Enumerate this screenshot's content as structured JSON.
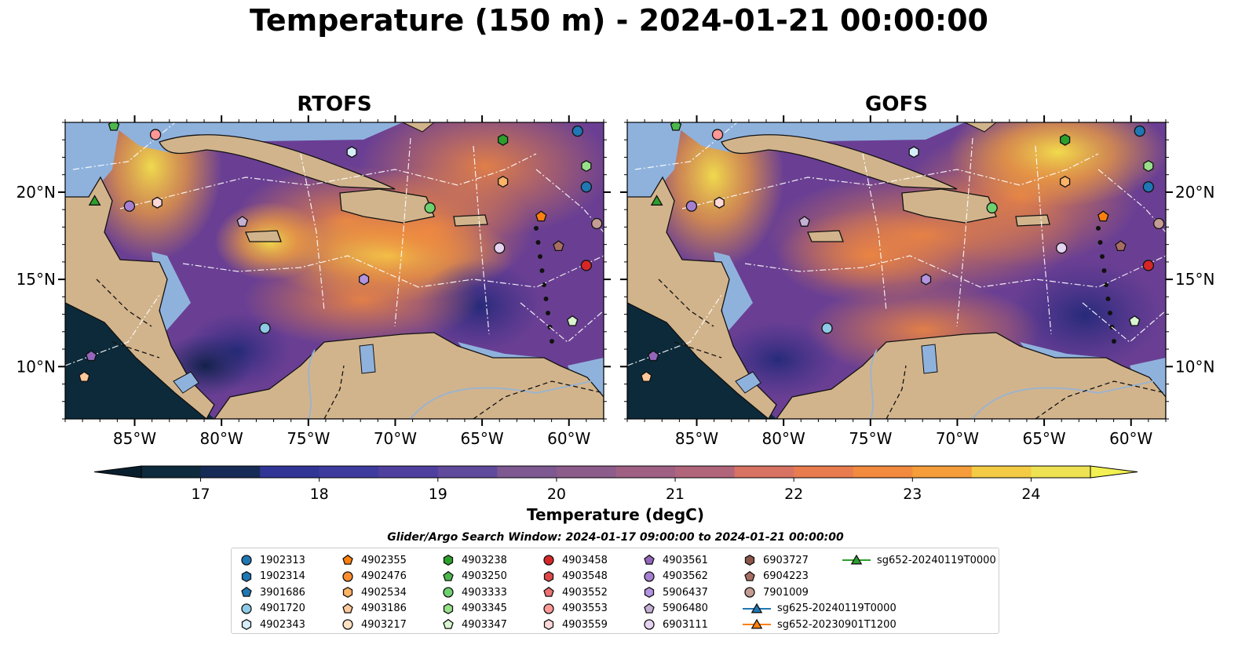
{
  "title": "Temperature (150 m) - 2024-01-21 00:00:00",
  "panels": [
    {
      "title": "RTOFS"
    },
    {
      "title": "GOFS"
    }
  ],
  "lat_labels": [
    "20°N",
    "15°N",
    "10°N"
  ],
  "lon_labels": [
    "85°W",
    "80°W",
    "75°W",
    "70°W",
    "65°W",
    "60°W"
  ],
  "map_extent": {
    "lon": [
      -89,
      -58
    ],
    "lat": [
      7,
      24
    ]
  },
  "colorbar": {
    "label": "Temperature (degC)",
    "ticks": [
      "17",
      "18",
      "19",
      "20",
      "21",
      "22",
      "23",
      "24"
    ],
    "range": [
      16.5,
      24.5
    ],
    "colormap": "thermal",
    "extend": "both"
  },
  "search_window": "Glider/Argo Search Window: 2024-01-17 09:00:00 to 2024-01-21 00:00:00",
  "legend": [
    {
      "label": "1902313",
      "marker": "circle",
      "color": "#1f77b4"
    },
    {
      "label": "1902314",
      "marker": "hexagon",
      "color": "#1f77b4"
    },
    {
      "label": "3901686",
      "marker": "pentagon",
      "color": "#1f77b4"
    },
    {
      "label": "4901720",
      "marker": "circle",
      "color": "#8ecae6"
    },
    {
      "label": "4902343",
      "marker": "hexagon",
      "color": "#d6eefa"
    },
    {
      "label": "4902355",
      "marker": "pentagon",
      "color": "#ff7f0e"
    },
    {
      "label": "4902476",
      "marker": "circle",
      "color": "#ff8c2e"
    },
    {
      "label": "4902534",
      "marker": "hexagon",
      "color": "#ffb366"
    },
    {
      "label": "4903186",
      "marker": "pentagon",
      "color": "#ffc89a"
    },
    {
      "label": "4903217",
      "marker": "circle",
      "color": "#ffe2c4"
    },
    {
      "label": "4903238",
      "marker": "hexagon",
      "color": "#2ca02c"
    },
    {
      "label": "4903250",
      "marker": "pentagon",
      "color": "#4cb84c"
    },
    {
      "label": "4903333",
      "marker": "circle",
      "color": "#6fd06f"
    },
    {
      "label": "4903345",
      "marker": "hexagon",
      "color": "#98df8a"
    },
    {
      "label": "4903347",
      "marker": "pentagon",
      "color": "#d8f5d0"
    },
    {
      "label": "4903458",
      "marker": "circle",
      "color": "#d62728"
    },
    {
      "label": "4903548",
      "marker": "hexagon",
      "color": "#e04848"
    },
    {
      "label": "4903552",
      "marker": "pentagon",
      "color": "#ee7070"
    },
    {
      "label": "4903553",
      "marker": "circle",
      "color": "#ff9896"
    },
    {
      "label": "4903559",
      "marker": "hexagon",
      "color": "#ffd8d8"
    },
    {
      "label": "4903561",
      "marker": "pentagon",
      "color": "#9467bd"
    },
    {
      "label": "4903562",
      "marker": "circle",
      "color": "#a57fd0"
    },
    {
      "label": "5906437",
      "marker": "hexagon",
      "color": "#b294e0"
    },
    {
      "label": "5906480",
      "marker": "pentagon",
      "color": "#c5b0d5"
    },
    {
      "label": "6903111",
      "marker": "circle",
      "color": "#e6d3f2"
    },
    {
      "label": "6903727",
      "marker": "hexagon",
      "color": "#8c564b"
    },
    {
      "label": "6904223",
      "marker": "pentagon",
      "color": "#a86e62"
    },
    {
      "label": "7901009",
      "marker": "circle",
      "color": "#c49c94"
    },
    {
      "label": "sg625-20240119T0000",
      "marker": "triangle-line",
      "color": "#1f77b4"
    },
    {
      "label": "sg652-20230901T1200",
      "marker": "triangle-line",
      "color": "#ff7f0e"
    },
    {
      "label": "sg652-20240119T0000",
      "marker": "triangle-line",
      "color": "#2ca02c"
    }
  ],
  "floats": [
    {
      "id": "1902313",
      "lon": -59.0,
      "lat": 20.3
    },
    {
      "id": "1902313",
      "lon": -59.5,
      "lat": 23.5
    },
    {
      "id": "4903333",
      "lon": -68.0,
      "lat": 19.1
    },
    {
      "id": "4903345",
      "lon": -59.0,
      "lat": 21.5
    },
    {
      "id": "4903238",
      "lon": -63.8,
      "lat": 23.0
    },
    {
      "id": "4902534",
      "lon": -63.8,
      "lat": 20.6
    },
    {
      "id": "4902355",
      "lon": -61.6,
      "lat": 18.6
    },
    {
      "id": "7901009",
      "lon": -58.4,
      "lat": 18.2
    },
    {
      "id": "6903111",
      "lon": -64.0,
      "lat": 16.8
    },
    {
      "id": "6904223",
      "lon": -60.6,
      "lat": 16.9
    },
    {
      "id": "4903458",
      "lon": -59.0,
      "lat": 15.8
    },
    {
      "id": "4903347",
      "lon": -59.8,
      "lat": 12.6
    },
    {
      "id": "5906437",
      "lon": -71.8,
      "lat": 15.0
    },
    {
      "id": "4901720",
      "lon": -77.5,
      "lat": 12.2
    },
    {
      "id": "4902343",
      "lon": -72.5,
      "lat": 22.3
    },
    {
      "id": "5906480",
      "lon": -78.8,
      "lat": 18.3
    },
    {
      "id": "4903553",
      "lon": -83.8,
      "lat": 23.3
    },
    {
      "id": "4903559",
      "lon": -83.7,
      "lat": 19.4
    },
    {
      "id": "4903562",
      "lon": -85.3,
      "lat": 19.2
    },
    {
      "id": "4903561",
      "lon": -87.5,
      "lat": 10.6
    },
    {
      "id": "4903186",
      "lon": -87.9,
      "lat": 9.4
    },
    {
      "id": "4903250",
      "lon": -86.2,
      "lat": 23.8
    },
    {
      "id": "sg652-20240119T0000",
      "lon": -87.3,
      "lat": 19.5
    }
  ]
}
